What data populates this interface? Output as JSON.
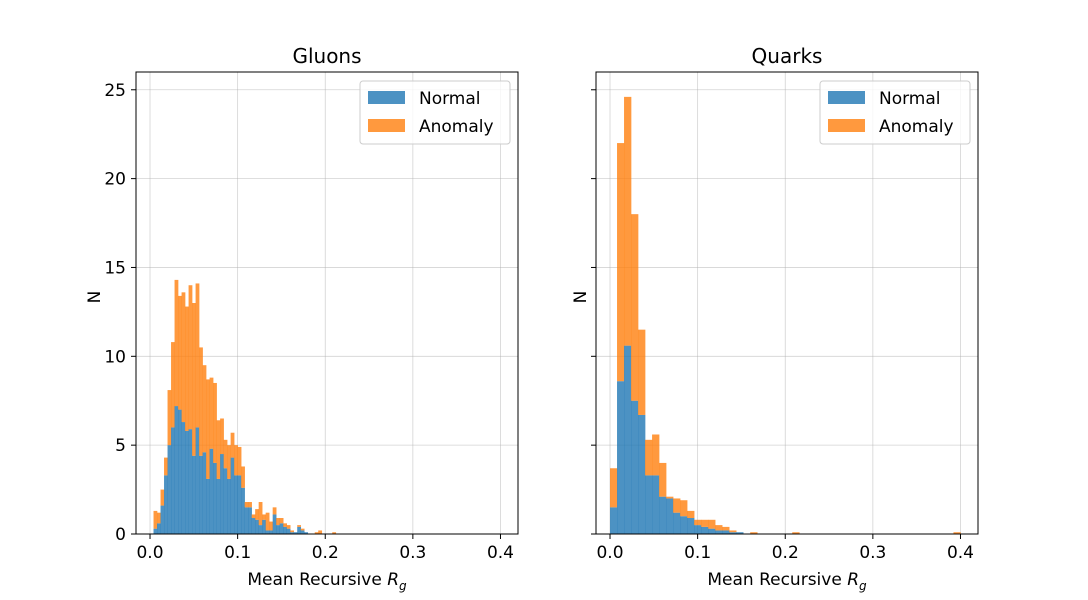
{
  "colors": {
    "normal": "#1f77b4",
    "anomaly": "#ff7f0e"
  },
  "chart_data": [
    {
      "type": "bar",
      "histtype": "stacked-histogram",
      "title": "Gluons",
      "xlabel_main": "Mean Recursive ",
      "xlabel_var": "R",
      "xlabel_sub": "g",
      "ylabel": "N",
      "xlim": [
        -0.016,
        0.42
      ],
      "ylim": [
        0,
        26
      ],
      "xticks": [
        0.0,
        0.1,
        0.2,
        0.3,
        0.4
      ],
      "xtick_labels": [
        "0.0",
        "0.1",
        "0.2",
        "0.3",
        "0.4"
      ],
      "yticks": [
        0,
        5,
        10,
        15,
        20,
        25
      ],
      "ytick_labels": [
        "0",
        "5",
        "10",
        "15",
        "20",
        "25"
      ],
      "ytick_labels_visible": true,
      "grid": true,
      "legend_position": "top-right",
      "bin_width": 0.004,
      "bin_start": 0.004,
      "series": [
        {
          "name": "Normal",
          "values": [
            0.3,
            0.6,
            1.6,
            3.3,
            5.0,
            6.0,
            7.2,
            7.0,
            6.3,
            5.8,
            5.9,
            4.4,
            6.0,
            4.4,
            4.6,
            3.1,
            4.8,
            4.0,
            3.1,
            4.5,
            3.7,
            3.1,
            4.3,
            3.3,
            3.3,
            2.6,
            1.5,
            1.5,
            0.9,
            0.8,
            0.5,
            0.8,
            0.2,
            0.2,
            1.1,
            0.5,
            0.6,
            0.4,
            0.3,
            0.1,
            0.1,
            0.4,
            0.2,
            0.1,
            0.0,
            0.0,
            0.0,
            0.0,
            0.0,
            0.0,
            0.0,
            0.0,
            0.0,
            0.0,
            0.0,
            0.0,
            0.0,
            0.0,
            0.0,
            0.0,
            0.0,
            0.0,
            0.0,
            0.0,
            0.0,
            0.0,
            0.0,
            0.0,
            0.0,
            0.0,
            0.0,
            0.0,
            0.0,
            0.0,
            0.0,
            0.0,
            0.0,
            0.0,
            0.0,
            0.0,
            0.0,
            0.0,
            0.0,
            0.0,
            0.0,
            0.0,
            0.0,
            0.0,
            0.0,
            0.0,
            0.0,
            0.0,
            0.0,
            0.0,
            0.0,
            0.0,
            0.0,
            0.0,
            0.0
          ]
        },
        {
          "name": "Anomaly",
          "values": [
            1.0,
            0.6,
            0.9,
            1.0,
            3.1,
            4.8,
            7.1,
            6.4,
            7.3,
            7.0,
            8.1,
            8.6,
            8.1,
            6.1,
            4.9,
            5.6,
            4.0,
            4.5,
            3.3,
            2.0,
            1.6,
            1.9,
            1.4,
            1.7,
            1.6,
            1.2,
            0.3,
            0.3,
            0.2,
            0.6,
            1.3,
            0.3,
            1.0,
            0.5,
            0.4,
            0.4,
            0.3,
            0.2,
            0.2,
            0.1,
            0.0,
            0.1,
            0.1,
            0.0,
            0.0,
            0.0,
            0.1,
            0.2,
            0.0,
            0.0,
            0.0,
            0.1,
            0.0,
            0.0,
            0.0,
            0.0,
            0.0,
            0.0,
            0.0,
            0.0,
            0.0,
            0.0,
            0.0,
            0.0,
            0.0,
            0.0,
            0.0,
            0.0,
            0.0,
            0.0,
            0.0,
            0.0,
            0.0,
            0.0,
            0.0,
            0.0,
            0.0,
            0.0,
            0.0,
            0.0,
            0.0,
            0.0,
            0.0,
            0.0,
            0.0,
            0.0,
            0.0,
            0.0,
            0.0,
            0.0,
            0.0,
            0.0,
            0.0,
            0.0,
            0.0,
            0.0,
            0.0,
            0.0,
            0.0
          ]
        }
      ]
    },
    {
      "type": "bar",
      "histtype": "stacked-histogram",
      "title": "Quarks",
      "xlabel_main": "Mean Recursive ",
      "xlabel_var": "R",
      "xlabel_sub": "g",
      "ylabel": "N",
      "xlim": [
        -0.016,
        0.42
      ],
      "ylim": [
        0,
        26
      ],
      "xticks": [
        0.0,
        0.1,
        0.2,
        0.3,
        0.4
      ],
      "xtick_labels": [
        "0.0",
        "0.1",
        "0.2",
        "0.3",
        "0.4"
      ],
      "yticks": [
        0,
        5,
        10,
        15,
        20,
        25
      ],
      "ytick_labels": [
        "0",
        "5",
        "10",
        "15",
        "20",
        "25"
      ],
      "ytick_labels_visible": false,
      "grid": true,
      "legend_position": "top-right",
      "bin_width": 0.008,
      "bin_start": 0.0,
      "series": [
        {
          "name": "Normal",
          "values": [
            1.5,
            8.6,
            10.6,
            7.5,
            6.7,
            3.3,
            3.3,
            2.1,
            2.0,
            1.2,
            1.0,
            0.9,
            0.5,
            0.4,
            0.3,
            0.2,
            0.2,
            0.1,
            0.1,
            0.0,
            0.0,
            0.0,
            0.0,
            0.0,
            0.0,
            0.0,
            0.0,
            0.0,
            0.0,
            0.0,
            0.0,
            0.0,
            0.0,
            0.0,
            0.0,
            0.0,
            0.0,
            0.0,
            0.0,
            0.0,
            0.0,
            0.0,
            0.0,
            0.0,
            0.0,
            0.0,
            0.0,
            0.0,
            0.0,
            0.0
          ]
        },
        {
          "name": "Anomaly",
          "values": [
            2.2,
            13.4,
            14.0,
            10.5,
            4.8,
            2.0,
            2.3,
            1.9,
            0.1,
            0.8,
            0.9,
            0.4,
            0.3,
            0.4,
            0.5,
            0.3,
            0.2,
            0.1,
            0.0,
            0.0,
            0.1,
            0.0,
            0.0,
            0.0,
            0.0,
            0.0,
            0.1,
            0.0,
            0.0,
            0.0,
            0.0,
            0.0,
            0.0,
            0.0,
            0.0,
            0.0,
            0.0,
            0.0,
            0.0,
            0.0,
            0.0,
            0.0,
            0.0,
            0.0,
            0.0,
            0.0,
            0.0,
            0.0,
            0.0,
            0.1
          ]
        }
      ]
    }
  ]
}
